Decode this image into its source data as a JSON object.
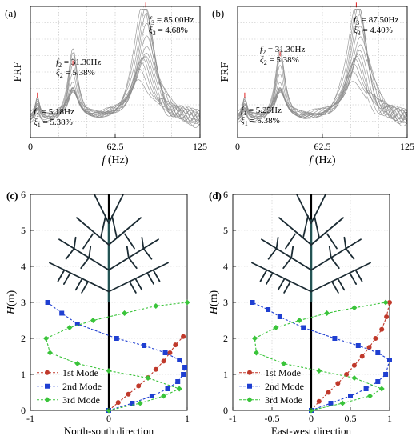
{
  "chart_data": [
    {
      "panel": "(a)",
      "type": "line",
      "ylabel": "FRF",
      "xlabel_italic": "f",
      "xlabel_unit": " (Hz)",
      "xlim": [
        0,
        125
      ],
      "xticks": [
        "0",
        "62.5",
        "125"
      ],
      "peaks": [
        {
          "freq": 5.18,
          "f_label": "f",
          "f_sub": "1",
          "f_text": " = 5.18Hz",
          "xi_label": "ξ",
          "xi_sub": "1",
          "xi_text": " = 5.38%"
        },
        {
          "freq": 31.3,
          "f_label": "f",
          "f_sub": "2",
          "f_text": " = 31.30Hz",
          "xi_label": "ξ",
          "xi_sub": "2",
          "xi_text": " = 5.38%"
        },
        {
          "freq": 85.0,
          "f_label": "f",
          "f_sub": "3",
          "f_text": " = 85.00Hz",
          "xi_label": "ξ",
          "xi_sub": "3",
          "xi_text": " = 4.68%"
        }
      ]
    },
    {
      "panel": "(b)",
      "type": "line",
      "ylabel": "FRF",
      "xlabel_italic": "f",
      "xlabel_unit": " (Hz)",
      "xlim": [
        0,
        125
      ],
      "xticks": [
        "0",
        "62.5",
        "125"
      ],
      "peaks": [
        {
          "freq": 5.25,
          "f_label": "f",
          "f_sub": "1",
          "f_text": " = 5.25Hz",
          "xi_label": "ξ",
          "xi_sub": "1",
          "xi_text": " = 5.38%"
        },
        {
          "freq": 31.3,
          "f_label": "f",
          "f_sub": "2",
          "f_text": " = 31.30Hz",
          "xi_label": "ξ",
          "xi_sub": "2",
          "xi_text": " = 5.38%"
        },
        {
          "freq": 87.5,
          "f_label": "f",
          "f_sub": "3",
          "f_text": " = 87.50Hz",
          "xi_label": "ξ",
          "xi_sub": "3",
          "xi_text": " = 4.40%"
        }
      ]
    },
    {
      "panel": "(c)",
      "type": "line",
      "xlabel": "North-south direction",
      "ylabel_italic": "H",
      "ylabel_unit": "(m)",
      "xlim": [
        -1,
        1
      ],
      "ylim": [
        0,
        6
      ],
      "xticks": [
        "-1",
        "0",
        "1"
      ],
      "yticks": [
        "0",
        "1",
        "2",
        "3",
        "4",
        "5",
        "6"
      ],
      "series": [
        {
          "name": "1st Mode",
          "color": "#c0392b",
          "marker": "circle",
          "x": [
            0,
            0.12,
            0.25,
            0.38,
            0.5,
            0.6,
            0.7,
            0.78,
            0.85,
            0.95
          ],
          "y": [
            0,
            0.22,
            0.45,
            0.68,
            0.91,
            1.14,
            1.37,
            1.6,
            1.82,
            2.05
          ]
        },
        {
          "name": "2nd Mode",
          "color": "#1f3fd1",
          "marker": "square",
          "x": [
            0,
            0.3,
            0.55,
            0.75,
            0.88,
            0.95,
            0.97,
            0.9,
            0.72,
            0.45,
            0.1,
            -0.4,
            -0.6,
            -0.78
          ],
          "y": [
            0,
            0.2,
            0.4,
            0.6,
            0.8,
            1.0,
            1.2,
            1.4,
            1.6,
            1.8,
            2.0,
            2.4,
            2.7,
            3.0
          ]
        },
        {
          "name": "3rd Mode",
          "color": "#3ac43a",
          "marker": "diamond",
          "x": [
            0,
            0.4,
            0.7,
            0.9,
            0.5,
            0,
            -0.4,
            -0.75,
            -0.8,
            -0.5,
            -0.2,
            0.2,
            0.6,
            1.0
          ],
          "y": [
            0,
            0.2,
            0.4,
            0.6,
            0.9,
            1.1,
            1.3,
            1.6,
            2.0,
            2.3,
            2.5,
            2.7,
            2.9,
            3.0
          ]
        }
      ],
      "legend_position": "bottom-left"
    },
    {
      "panel": "(d)",
      "type": "line",
      "xlabel": "East-west direction",
      "ylabel_italic": "H",
      "ylabel_unit": "(m)",
      "xlim": [
        -1,
        1
      ],
      "ylim": [
        0,
        6
      ],
      "xticks": [
        "-1",
        "-0.5",
        "0",
        "0.5",
        "1"
      ],
      "yticks": [
        "0",
        "1",
        "2",
        "3",
        "4",
        "5",
        "6"
      ],
      "series": [
        {
          "name": "1st Mode",
          "color": "#c0392b",
          "marker": "circle",
          "x": [
            0,
            0.1,
            0.22,
            0.34,
            0.45,
            0.55,
            0.65,
            0.74,
            0.82,
            0.9,
            0.96,
            1.0
          ],
          "y": [
            0,
            0.25,
            0.5,
            0.75,
            1.0,
            1.25,
            1.5,
            1.75,
            2.0,
            2.25,
            2.6,
            3.0
          ]
        },
        {
          "name": "2nd Mode",
          "color": "#1f3fd1",
          "marker": "square",
          "x": [
            0,
            0.25,
            0.5,
            0.7,
            0.85,
            0.95,
            1.0,
            0.85,
            0.6,
            0.3,
            -0.1,
            -0.4,
            -0.55,
            -0.75
          ],
          "y": [
            0,
            0.2,
            0.4,
            0.6,
            0.8,
            1.0,
            1.4,
            1.6,
            1.8,
            2.0,
            2.3,
            2.6,
            2.8,
            3.0
          ]
        },
        {
          "name": "3rd Mode",
          "color": "#3ac43a",
          "marker": "diamond",
          "x": [
            0,
            0.4,
            0.75,
            0.9,
            0.55,
            0.1,
            -0.35,
            -0.7,
            -0.72,
            -0.45,
            -0.15,
            0.2,
            0.55,
            0.95
          ],
          "y": [
            0,
            0.2,
            0.4,
            0.6,
            0.9,
            1.1,
            1.3,
            1.6,
            2.0,
            2.3,
            2.5,
            2.7,
            2.85,
            3.0
          ]
        }
      ],
      "legend_position": "bottom-left"
    }
  ]
}
